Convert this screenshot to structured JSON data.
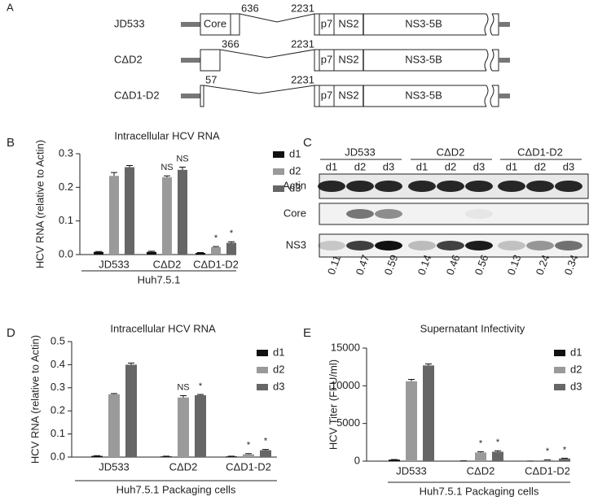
{
  "panels": {
    "a": "A",
    "b": "B",
    "c": "C",
    "d": "D",
    "e": "E"
  },
  "diagram": {
    "constructs": [
      {
        "name": "JD533",
        "breaks": [
          "636",
          "2231"
        ],
        "domains": [
          "Core",
          "p7",
          "NS2",
          "NS3-5B"
        ]
      },
      {
        "name": "CΔD2",
        "breaks": [
          "366",
          "2231"
        ],
        "domains": [
          "p7",
          "NS2",
          "NS3-5B"
        ]
      },
      {
        "name": "CΔD1-D2",
        "breaks": [
          "57",
          "2231"
        ],
        "domains": [
          "p7",
          "NS2",
          "NS3-5B"
        ]
      }
    ]
  },
  "blot": {
    "groups": [
      "JD533",
      "CΔD2",
      "CΔD1-D2"
    ],
    "lanes": [
      "d1",
      "d2",
      "d3",
      "d1",
      "d2",
      "d3",
      "d1",
      "d2",
      "d3"
    ],
    "rows": [
      "Actin",
      "Core",
      "NS3"
    ],
    "quantification": [
      0.11,
      0.47,
      0.59,
      0.14,
      0.46,
      0.56,
      0.13,
      0.24,
      0.34
    ]
  },
  "chart_data": [
    {
      "type": "bar",
      "title": "Intracellular HCV RNA",
      "y_label": "HCV RNA (relative to Actin)",
      "categories": [
        "JD533",
        "CΔD2",
        "CΔD1-D2"
      ],
      "group_label": "Huh7.5.1",
      "series": [
        {
          "name": "d1",
          "color": "#111111",
          "values": [
            0.008,
            0.008,
            0.005
          ],
          "errors": [
            0.001,
            0.002,
            0.001
          ],
          "annotations": [
            null,
            null,
            null
          ]
        },
        {
          "name": "d2",
          "color": "#9a9a9a",
          "values": [
            0.234,
            0.23,
            0.022
          ],
          "errors": [
            0.01,
            0.004,
            0.002
          ],
          "annotations": [
            null,
            "NS",
            "*"
          ]
        },
        {
          "name": "d3",
          "color": "#666666",
          "values": [
            0.26,
            0.252,
            0.035
          ],
          "errors": [
            0.005,
            0.008,
            0.003
          ],
          "annotations": [
            null,
            "NS",
            "*"
          ]
        }
      ],
      "ylim": [
        0,
        0.3
      ],
      "yticks": [
        {
          "value": 0,
          "label": "0.0"
        },
        0.1,
        0.2,
        0.3
      ],
      "legend": "top-right"
    },
    {
      "type": "bar",
      "title": "Intracellular HCV RNA",
      "y_label": "HCV RNA (relative to Actin)",
      "categories": [
        "JD533",
        "CΔD2",
        "CΔD1-D2"
      ],
      "group_label": "Huh7.5.1 Packaging cells",
      "series": [
        {
          "name": "d1",
          "color": "#111111",
          "values": [
            0.005,
            0.003,
            0.003
          ],
          "errors": [
            0.001,
            0.001,
            0.001
          ],
          "annotations": [
            null,
            null,
            null
          ]
        },
        {
          "name": "d2",
          "color": "#9a9a9a",
          "values": [
            0.272,
            0.258,
            0.012
          ],
          "errors": [
            0.003,
            0.008,
            0.003
          ],
          "annotations": [
            null,
            "NS",
            "*"
          ]
        },
        {
          "name": "d3",
          "color": "#666666",
          "values": [
            0.4,
            0.268,
            0.03
          ],
          "errors": [
            0.007,
            0.003,
            0.003
          ],
          "annotations": [
            null,
            "*",
            "*"
          ]
        }
      ],
      "ylim": [
        0,
        0.5
      ],
      "yticks": [
        {
          "value": 0,
          "label": "0.0"
        },
        0.1,
        0.2,
        0.3,
        0.4,
        0.5
      ],
      "legend": "top-right"
    },
    {
      "type": "bar",
      "title": "Supernatant Infectivity",
      "y_label": "HCV Titer (FFU/ml)",
      "categories": [
        "JD533",
        "CΔD2",
        "CΔD1-D2"
      ],
      "group_label": "Huh7.5.1 Packaging cells",
      "series": [
        {
          "name": "d1",
          "color": "#111111",
          "values": [
            200,
            30,
            10
          ],
          "errors": [
            20,
            5,
            5
          ],
          "annotations": [
            null,
            null,
            null
          ]
        },
        {
          "name": "d2",
          "color": "#9a9a9a",
          "values": [
            10600,
            1150,
            150
          ],
          "errors": [
            250,
            100,
            30
          ],
          "annotations": [
            null,
            "*",
            "*"
          ]
        },
        {
          "name": "d3",
          "color": "#666666",
          "values": [
            12700,
            1250,
            350
          ],
          "errors": [
            200,
            120,
            40
          ],
          "annotations": [
            null,
            "*",
            "*"
          ]
        }
      ],
      "ylim": [
        0,
        15000
      ],
      "yticks": [
        0,
        5000,
        10000,
        15000
      ],
      "legend": "top-right"
    }
  ]
}
